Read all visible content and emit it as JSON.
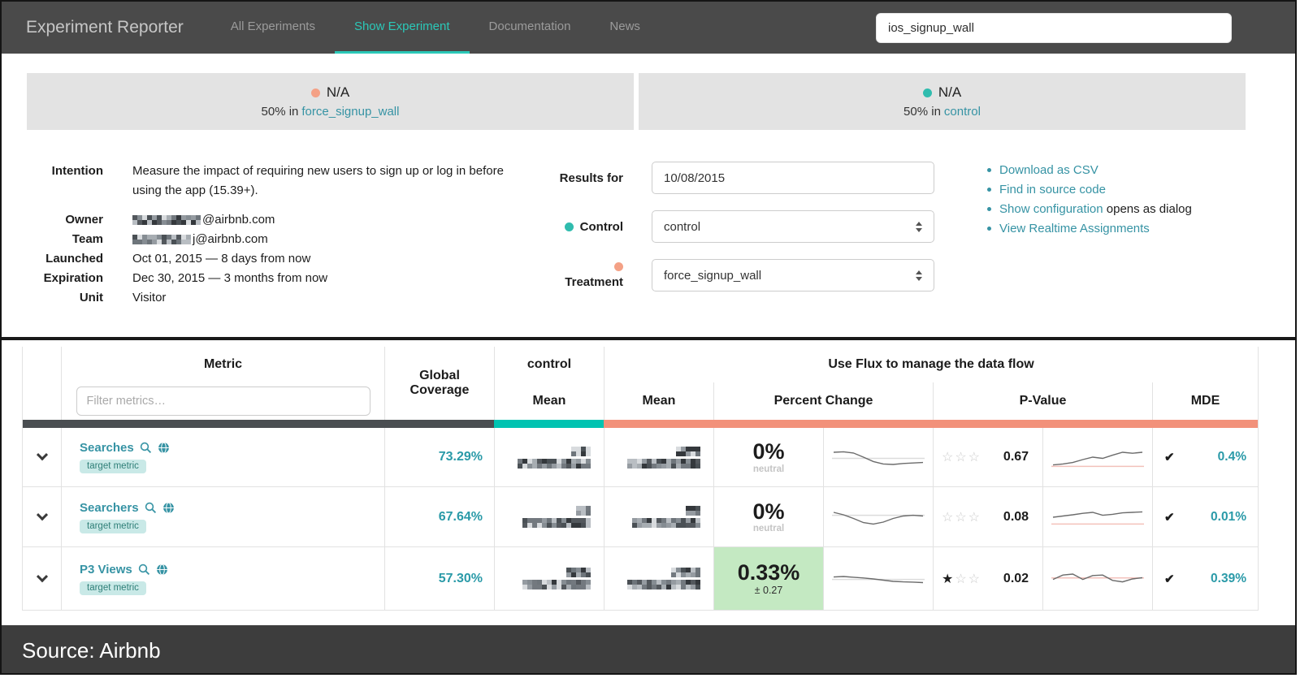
{
  "navbar": {
    "brand": "Experiment Reporter",
    "items": [
      {
        "label": "All Experiments"
      },
      {
        "label": "Show Experiment"
      },
      {
        "label": "Documentation"
      },
      {
        "label": "News"
      }
    ],
    "search_value": "ios_signup_wall"
  },
  "banners": {
    "treatment": {
      "status": "N/A",
      "prefix": "50% in",
      "link": "force_signup_wall"
    },
    "control": {
      "status": "N/A",
      "prefix": "50% in",
      "link": "control"
    }
  },
  "details": {
    "intention_label": "Intention",
    "intention_value": "Measure the impact of requiring new users to sign up or log in before using the app (15.39+).",
    "owner_label": "Owner",
    "owner_value": "@airbnb.com",
    "team_label": "Team",
    "team_value": "j@airbnb.com",
    "launched_label": "Launched",
    "launched_value": "Oct 01, 2015 — 8 days from now",
    "expiration_label": "Expiration",
    "expiration_value": "Dec 30, 2015 — 3 months from now",
    "unit_label": "Unit",
    "unit_value": "Visitor"
  },
  "controls": {
    "results_for_label": "Results for",
    "results_for_value": "10/08/2015",
    "control_label": "Control",
    "control_value": "control",
    "treatment_label": "Treatment",
    "treatment_value": "force_signup_wall"
  },
  "links": [
    {
      "text": "Download as CSV",
      "suffix": ""
    },
    {
      "text": "Find in source code",
      "suffix": ""
    },
    {
      "text": "Show configuration",
      "suffix": " opens as dialog"
    },
    {
      "text": "View Realtime Assignments",
      "suffix": ""
    }
  ],
  "table": {
    "headers": {
      "metric": "Metric",
      "filter_placeholder": "Filter metrics…",
      "global_coverage": "Global Coverage",
      "control_group": "control",
      "flux_banner": "Use Flux to manage the data flow",
      "control_mean": "Mean",
      "treatment_mean": "Mean",
      "percent_change": "Percent Change",
      "p_value": "P-Value",
      "mde": "MDE"
    },
    "rows": [
      {
        "name": "Searches",
        "badge": "target metric",
        "coverage": "73.29%",
        "control_mean_redacted": true,
        "treatment_mean_redacted": true,
        "percent_change": "0%",
        "percent_change_sub": "neutral",
        "highlight": false,
        "stars": [
          false,
          false,
          false
        ],
        "p_value": "0.67",
        "mde": "0.4%",
        "pc_spark": {
          "points": [
            0.3,
            0.28,
            0.33,
            0.5,
            0.68,
            0.78,
            0.8,
            0.76,
            0.74,
            0.72
          ],
          "ref": 0.55,
          "ref_color": "#dcdcdc"
        },
        "pv_spark": {
          "points": [
            0.82,
            0.78,
            0.72,
            0.6,
            0.5,
            0.55,
            0.42,
            0.3,
            0.34,
            0.3
          ],
          "ref": 0.88,
          "ref_color": "#f3c1bb"
        }
      },
      {
        "name": "Searchers",
        "badge": "target metric",
        "coverage": "67.64%",
        "control_mean_redacted": true,
        "treatment_mean_redacted": true,
        "percent_change": "0%",
        "percent_change_sub": "neutral",
        "highlight": false,
        "stars": [
          false,
          false,
          false
        ],
        "p_value": "0.08",
        "mde": "0.01%",
        "pc_spark": {
          "points": [
            0.3,
            0.4,
            0.55,
            0.72,
            0.78,
            0.7,
            0.55,
            0.45,
            0.42,
            0.45
          ],
          "ref": 0.42,
          "ref_color": "#dcdcdc"
        },
        "pv_spark": {
          "points": [
            0.5,
            0.45,
            0.4,
            0.34,
            0.3,
            0.42,
            0.38,
            0.32,
            0.3,
            0.28
          ],
          "ref": 0.78,
          "ref_color": "#f3c1bb"
        }
      },
      {
        "name": "P3 Views",
        "badge": "target metric",
        "coverage": "57.30%",
        "control_mean_redacted": true,
        "treatment_mean_redacted": true,
        "percent_change": "0.33%",
        "percent_change_sub": "± 0.27",
        "highlight": true,
        "stars": [
          true,
          false,
          false
        ],
        "p_value": "0.02",
        "mde": "0.39%",
        "pc_spark": {
          "points": [
            0.42,
            0.4,
            0.43,
            0.46,
            0.5,
            0.55,
            0.6,
            0.62,
            0.63,
            0.65
          ],
          "ref": 0.52,
          "ref_color": "#dcdcdc"
        },
        "pv_spark": {
          "points": [
            0.52,
            0.34,
            0.3,
            0.52,
            0.36,
            0.34,
            0.56,
            0.62,
            0.5,
            0.45
          ],
          "ref": 0.46,
          "ref_color": "#f3c1bb"
        }
      }
    ]
  },
  "footer": {
    "source": "Source: Airbnb"
  },
  "colors": {
    "navbar_bg": "#4a4a4a",
    "active_teal": "#2bc8b8",
    "link_teal": "#3693a4",
    "control_teal": "#00c3b1",
    "treatment_salmon": "#f2917a",
    "highlight_green": "#c4e9c2"
  }
}
